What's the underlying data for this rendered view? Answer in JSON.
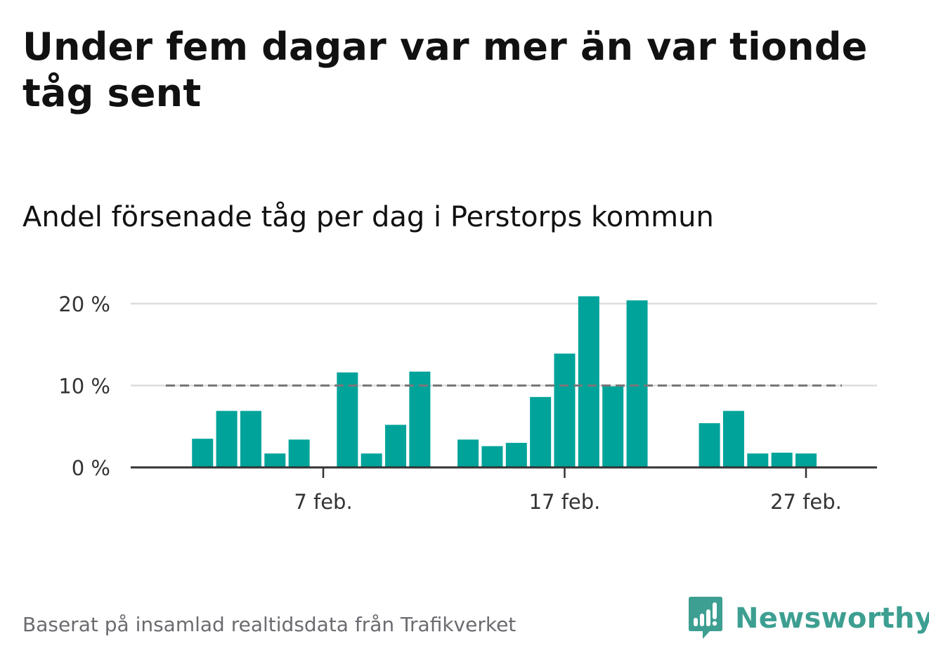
{
  "title": "Under fem dagar var mer än var tionde tåg sent",
  "subtitle": "Andel försenade tåg per dag i Perstorps kommun",
  "footer": {
    "source": "Baserat på insamlad realtidsdata från Trafikverket",
    "brand": "Newsworthy"
  },
  "colors": {
    "bar": "#00a39a",
    "reference_line": "#77777a",
    "grid": "#dddddd",
    "axis": "#333333",
    "brand": "#3d9f91"
  },
  "chart_data": {
    "type": "bar",
    "title": "",
    "xlabel": "",
    "ylabel": "",
    "ylim": [
      0,
      20
    ],
    "y_ticks": [
      0,
      10,
      20
    ],
    "y_tick_labels": [
      "0 %",
      "10 %",
      "20 %"
    ],
    "y_unit": "%",
    "grid": true,
    "x_range": [
      "2025-02-01",
      "2025-02-28"
    ],
    "x_ticks": [
      "2025-02-07",
      "2025-02-17",
      "2025-02-27"
    ],
    "x_tick_labels": [
      "7 feb.",
      "17 feb.",
      "27 feb."
    ],
    "reference_line": {
      "value": 10,
      "style": "dashed"
    },
    "categories": [
      "2025-02-02",
      "2025-02-03",
      "2025-02-04",
      "2025-02-05",
      "2025-02-06",
      "2025-02-07",
      "2025-02-08",
      "2025-02-09",
      "2025-02-10",
      "2025-02-11",
      "2025-02-12",
      "2025-02-13",
      "2025-02-14",
      "2025-02-15",
      "2025-02-16",
      "2025-02-17",
      "2025-02-18",
      "2025-02-19",
      "2025-02-20",
      "2025-02-21",
      "2025-02-22",
      "2025-02-23",
      "2025-02-24",
      "2025-02-25",
      "2025-02-26",
      "2025-02-27",
      "2025-02-28"
    ],
    "values": [
      3.5,
      6.9,
      6.9,
      1.7,
      3.4,
      null,
      11.6,
      1.7,
      5.2,
      11.7,
      null,
      3.4,
      2.6,
      3.0,
      8.6,
      13.9,
      20.9,
      9.9,
      20.4,
      null,
      null,
      5.4,
      6.9,
      1.7,
      1.8,
      1.7,
      null
    ]
  }
}
